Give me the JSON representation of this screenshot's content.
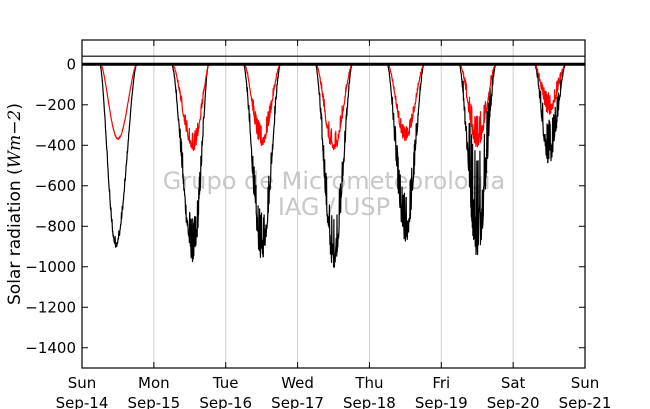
{
  "chart_data": {
    "type": "line",
    "title": "",
    "xlabel": "",
    "ylabel": "Solar radiation (Wm-2)",
    "ylabel_parts": {
      "prefix": "Solar radiation (",
      "math": "Wm−2",
      "suffix": ")"
    },
    "ylim": [
      -1500,
      120
    ],
    "xlim": [
      0,
      7
    ],
    "yticks": [
      0,
      -200,
      -400,
      -600,
      -800,
      -1000,
      -1200,
      -1400
    ],
    "ytick_labels": [
      "0",
      "−200",
      "−400",
      "−600",
      "−800",
      "−1000",
      "−1200",
      "−1400"
    ],
    "xticks": [
      {
        "day": "Sun",
        "date": "Sep-14"
      },
      {
        "day": "Mon",
        "date": "Sep-15"
      },
      {
        "day": "Tue",
        "date": "Sep-16"
      },
      {
        "day": "Wed",
        "date": "Sep-17"
      },
      {
        "day": "Thu",
        "date": "Sep-18"
      },
      {
        "day": "Fri",
        "date": "Sep-19"
      },
      {
        "day": "Sat",
        "date": "Sep-20"
      },
      {
        "day": "Sun",
        "date": "Sep-21"
      }
    ],
    "hlines": [
      40
    ],
    "grid": "vertical",
    "watermark": [
      "Grupo de Micrometeorologia",
      "IAG / USP"
    ],
    "series": [
      {
        "color": "#000000",
        "days": [
          {
            "start": 0.25,
            "end": 0.76,
            "peak": 0.47,
            "min": -895,
            "noise": 30
          },
          {
            "start": 1.25,
            "end": 1.76,
            "peak": 1.55,
            "min": -945,
            "noise": 120
          },
          {
            "start": 2.25,
            "end": 2.76,
            "peak": 2.5,
            "min": -930,
            "noise": 130
          },
          {
            "start": 3.25,
            "end": 3.76,
            "peak": 3.5,
            "min": -965,
            "noise": 140
          },
          {
            "start": 4.25,
            "end": 4.76,
            "peak": 4.5,
            "min": -850,
            "noise": 140
          },
          {
            "start": 5.25,
            "end": 5.76,
            "peak": 5.5,
            "min": -860,
            "noise": 320
          },
          {
            "start": 6.3,
            "end": 6.73,
            "peak": 6.5,
            "min": -460,
            "noise": 120
          }
        ]
      },
      {
        "color": "#ff0000",
        "days": [
          {
            "start": 0.26,
            "end": 0.76,
            "peak": 0.5,
            "min": -370,
            "noise": 5
          },
          {
            "start": 1.26,
            "end": 1.77,
            "peak": 1.55,
            "min": -410,
            "noise": 50
          },
          {
            "start": 2.26,
            "end": 2.76,
            "peak": 2.5,
            "min": -390,
            "noise": 60
          },
          {
            "start": 3.26,
            "end": 3.76,
            "peak": 3.5,
            "min": -420,
            "noise": 60
          },
          {
            "start": 4.26,
            "end": 4.76,
            "peak": 4.5,
            "min": -370,
            "noise": 40
          },
          {
            "start": 5.26,
            "end": 5.76,
            "peak": 5.5,
            "min": -385,
            "noise": 90
          },
          {
            "start": 6.3,
            "end": 6.73,
            "peak": 6.5,
            "min": -230,
            "noise": 60
          }
        ]
      }
    ]
  }
}
